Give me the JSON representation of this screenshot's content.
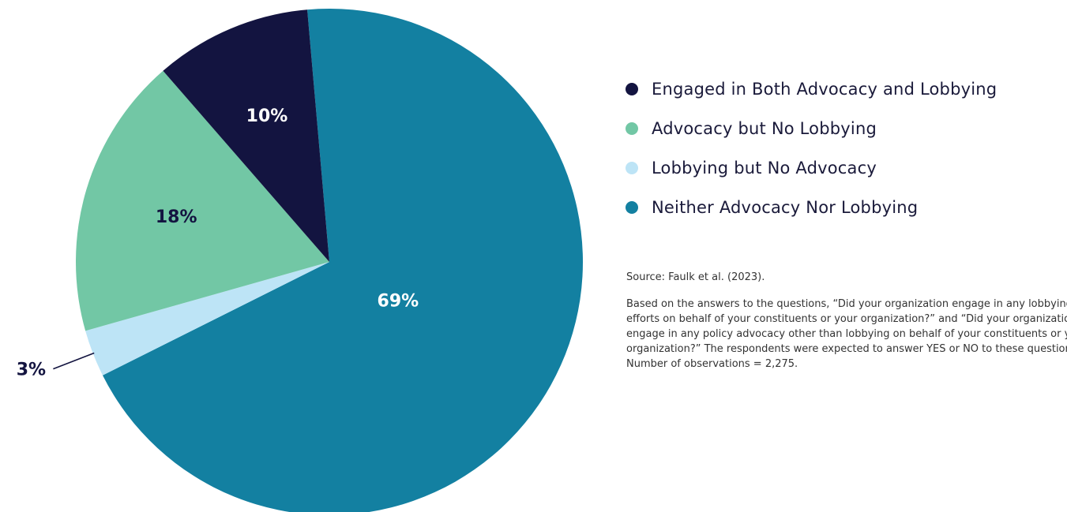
{
  "chart_data": {
    "type": "pie",
    "slices": [
      {
        "label": "Neither Advocacy Nor Lobbying",
        "value": 69,
        "display": "69%",
        "color": "#1380a1"
      },
      {
        "label": "Lobbying but No Advocacy",
        "value": 3,
        "display": "3%",
        "color": "#bde4f6"
      },
      {
        "label": "Advocacy but No Lobbying",
        "value": 18,
        "display": "18%",
        "color": "#72c7a5"
      },
      {
        "label": "Engaged in Both Advocacy and Lobbying",
        "value": 10,
        "display": "10%",
        "color": "#131440"
      }
    ],
    "legend_placement": "right",
    "title": "",
    "xlabel": "",
    "ylabel": ""
  },
  "legend": {
    "items": [
      {
        "label": "Engaged in Both Advocacy and Lobbying",
        "color": "#131440"
      },
      {
        "label": "Advocacy but No Lobbying",
        "color": "#72c7a5"
      },
      {
        "label": "Lobbying but No Advocacy",
        "color": "#bde4f6"
      },
      {
        "label": "Neither Advocacy Nor Lobbying",
        "color": "#1380a1"
      }
    ]
  },
  "notes": {
    "source": "Source: Faulk et al. (2023).",
    "method": "Based on the answers to the questions, “Did your organization engage in any lobbying efforts on behalf of your constituents or your organization?” and “Did your organization engage in any policy advocacy other than lobbying on behalf of your constituents or your organization?” The respondents were expected to answer YES or NO to these questions. Number of observations = 2,275."
  }
}
